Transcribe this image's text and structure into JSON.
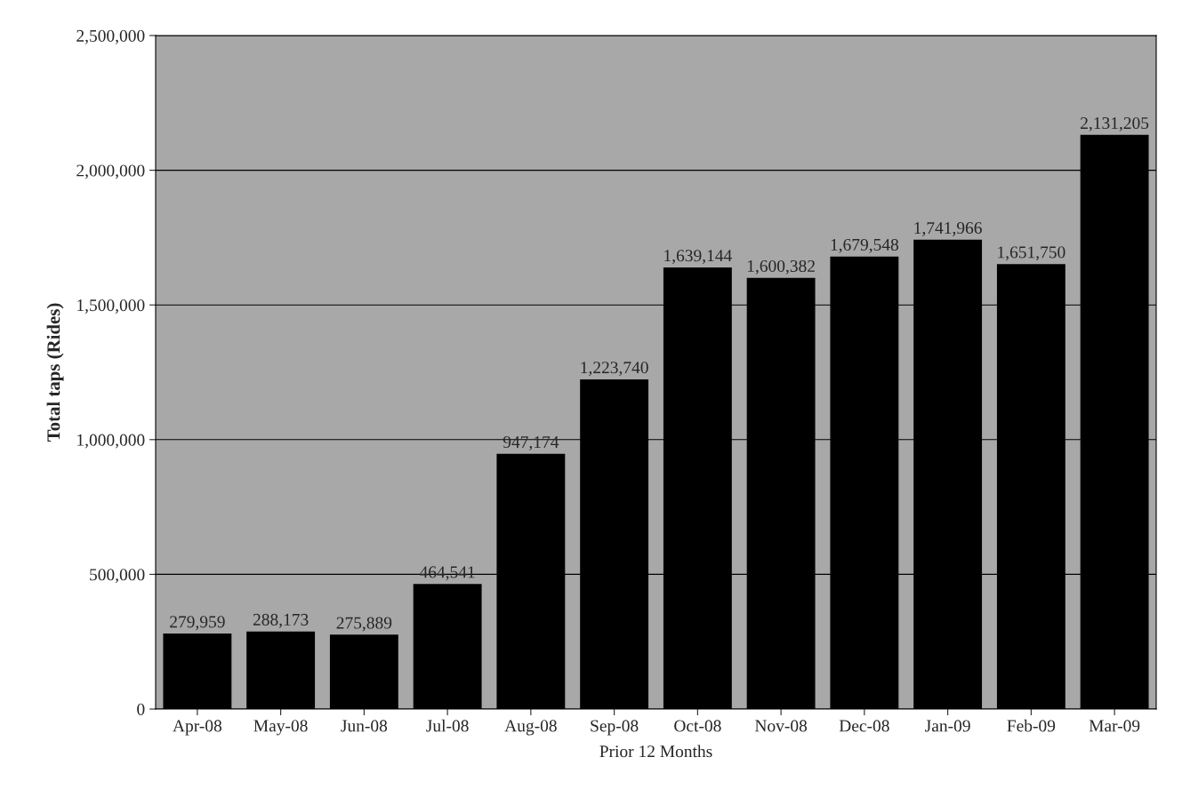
{
  "chart_data": {
    "type": "bar",
    "xlabel": "Prior 12 Months",
    "ylabel": "Total taps (Rides)",
    "categories": [
      "Apr-08",
      "May-08",
      "Jun-08",
      "Jul-08",
      "Aug-08",
      "Sep-08",
      "Oct-08",
      "Nov-08",
      "Dec-08",
      "Jan-09",
      "Feb-09",
      "Mar-09"
    ],
    "values": [
      279959,
      288173,
      275889,
      464541,
      947174,
      1223740,
      1639144,
      1600382,
      1679548,
      1741966,
      1651750,
      2131205
    ],
    "color": "#000000",
    "ylim": [
      0,
      2500000
    ],
    "yticks": [
      0,
      {
        "value": 500000,
        "label": "500,000"
      },
      {
        "value": 1000000,
        "label": "1,000,000"
      },
      {
        "value": 1500000,
        "label": "1,500,000"
      },
      {
        "value": 2000000,
        "label": "2,000,000"
      },
      {
        "value": 2500000,
        "label": "2,500,000"
      }
    ],
    "value_labels": [
      "279,959",
      "288,173",
      "275,889",
      "464,541",
      "947,174",
      "1,223,740",
      "1,639,144",
      "1,600,382",
      "1,679,548",
      "1,741,966",
      "1,651,750",
      "2,131,205"
    ],
    "grid": "y",
    "legend": false
  }
}
